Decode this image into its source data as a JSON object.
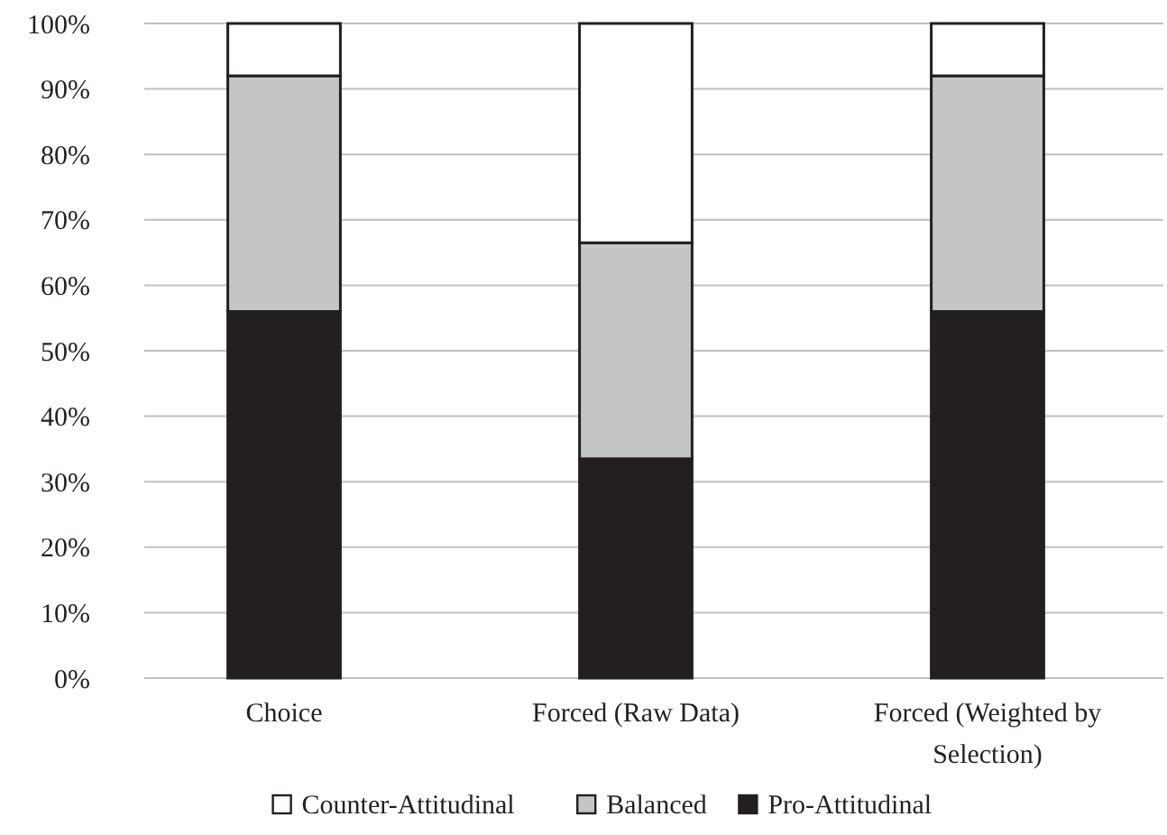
{
  "chart_data": {
    "type": "bar",
    "stacked": true,
    "categories": [
      "Choice",
      "Forced (Raw Data)",
      "Forced (Weighted by Selection)"
    ],
    "series": [
      {
        "name": "Pro-Attitudinal",
        "color": "#231f20",
        "values": [
          56,
          33.5,
          56
        ]
      },
      {
        "name": "Balanced",
        "color": "#c4c5c7",
        "values": [
          36,
          33,
          36
        ]
      },
      {
        "name": "Counter-Attitudinal",
        "color": "#ffffff",
        "values": [
          8,
          33.5,
          8
        ]
      }
    ],
    "ylim": [
      0,
      100
    ],
    "yticks": [
      {
        "value": 0,
        "label": "0%"
      },
      {
        "value": 10,
        "label": "10%"
      },
      {
        "value": 20,
        "label": "20%"
      },
      {
        "value": 30,
        "label": "30%"
      },
      {
        "value": 40,
        "label": "40%"
      },
      {
        "value": 50,
        "label": "50%"
      },
      {
        "value": 60,
        "label": "60%"
      },
      {
        "value": 70,
        "label": "70%"
      },
      {
        "value": 80,
        "label": "80%"
      },
      {
        "value": 90,
        "label": "90%"
      },
      {
        "value": 100,
        "label": "100%"
      }
    ],
    "grid": "y",
    "legend": "bottom"
  }
}
